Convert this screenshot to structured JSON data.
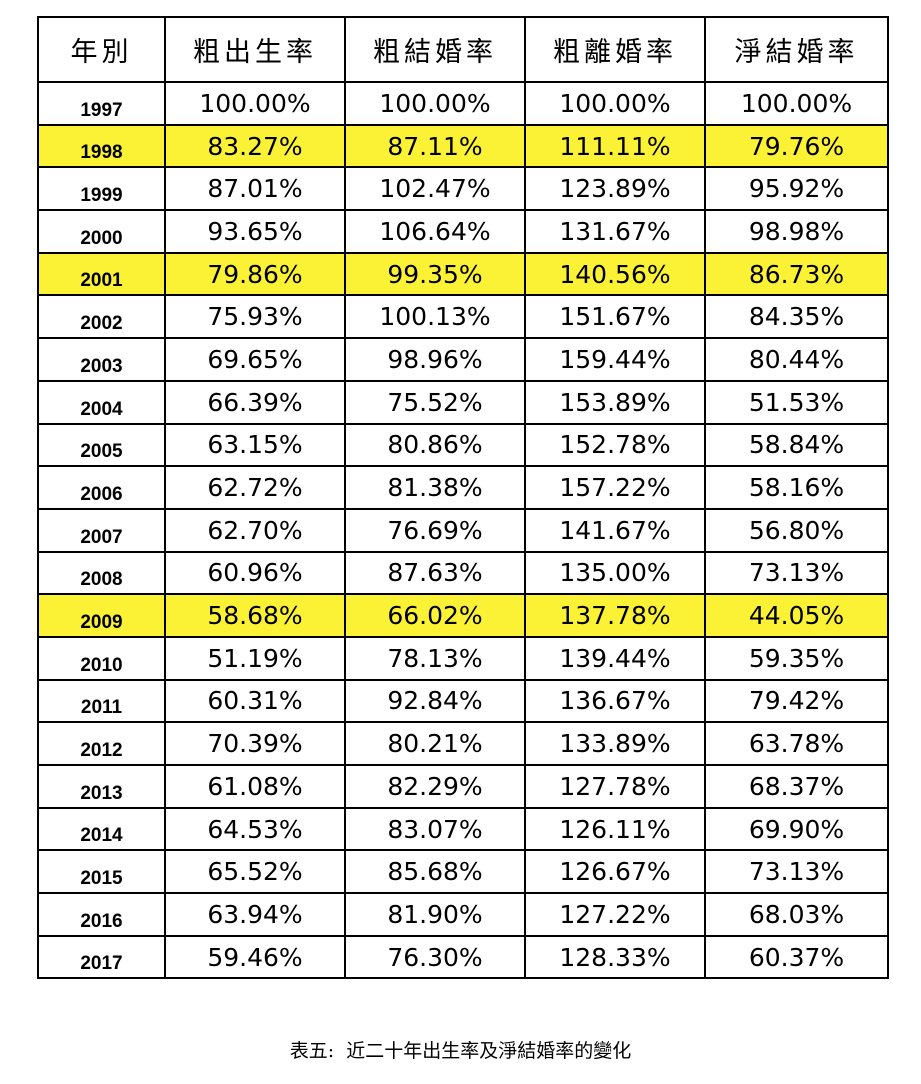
{
  "chart_data": {
    "type": "table",
    "columns": [
      "年別",
      "粗出生率",
      "粗結婚率",
      "粗離婚率",
      "淨結婚率"
    ],
    "rows": [
      {
        "year": "1997",
        "values": [
          "100.00%",
          "100.00%",
          "100.00%",
          "100.00%"
        ],
        "highlight": false
      },
      {
        "year": "1998",
        "values": [
          "83.27%",
          "87.11%",
          "111.11%",
          "79.76%"
        ],
        "highlight": true
      },
      {
        "year": "1999",
        "values": [
          "87.01%",
          "102.47%",
          "123.89%",
          "95.92%"
        ],
        "highlight": false
      },
      {
        "year": "2000",
        "values": [
          "93.65%",
          "106.64%",
          "131.67%",
          "98.98%"
        ],
        "highlight": false
      },
      {
        "year": "2001",
        "values": [
          "79.86%",
          "99.35%",
          "140.56%",
          "86.73%"
        ],
        "highlight": true
      },
      {
        "year": "2002",
        "values": [
          "75.93%",
          "100.13%",
          "151.67%",
          "84.35%"
        ],
        "highlight": false
      },
      {
        "year": "2003",
        "values": [
          "69.65%",
          "98.96%",
          "159.44%",
          "80.44%"
        ],
        "highlight": false
      },
      {
        "year": "2004",
        "values": [
          "66.39%",
          "75.52%",
          "153.89%",
          "51.53%"
        ],
        "highlight": false
      },
      {
        "year": "2005",
        "values": [
          "63.15%",
          "80.86%",
          "152.78%",
          "58.84%"
        ],
        "highlight": false
      },
      {
        "year": "2006",
        "values": [
          "62.72%",
          "81.38%",
          "157.22%",
          "58.16%"
        ],
        "highlight": false
      },
      {
        "year": "2007",
        "values": [
          "62.70%",
          "76.69%",
          "141.67%",
          "56.80%"
        ],
        "highlight": false
      },
      {
        "year": "2008",
        "values": [
          "60.96%",
          "87.63%",
          "135.00%",
          "73.13%"
        ],
        "highlight": false
      },
      {
        "year": "2009",
        "values": [
          "58.68%",
          "66.02%",
          "137.78%",
          "44.05%"
        ],
        "highlight": true
      },
      {
        "year": "2010",
        "values": [
          "51.19%",
          "78.13%",
          "139.44%",
          "59.35%"
        ],
        "highlight": false
      },
      {
        "year": "2011",
        "values": [
          "60.31%",
          "92.84%",
          "136.67%",
          "79.42%"
        ],
        "highlight": false
      },
      {
        "year": "2012",
        "values": [
          "70.39%",
          "80.21%",
          "133.89%",
          "63.78%"
        ],
        "highlight": false
      },
      {
        "year": "2013",
        "values": [
          "61.08%",
          "82.29%",
          "127.78%",
          "68.37%"
        ],
        "highlight": false
      },
      {
        "year": "2014",
        "values": [
          "64.53%",
          "83.07%",
          "126.11%",
          "69.90%"
        ],
        "highlight": false
      },
      {
        "year": "2015",
        "values": [
          "65.52%",
          "85.68%",
          "126.67%",
          "73.13%"
        ],
        "highlight": false
      },
      {
        "year": "2016",
        "values": [
          "63.94%",
          "81.90%",
          "127.22%",
          "68.03%"
        ],
        "highlight": false
      },
      {
        "year": "2017",
        "values": [
          "59.46%",
          "76.30%",
          "128.33%",
          "60.37%"
        ],
        "highlight": false
      }
    ],
    "highlight_color": "#fbf236"
  },
  "caption": "表五:  近二十年出生率及淨結婚率的變化"
}
